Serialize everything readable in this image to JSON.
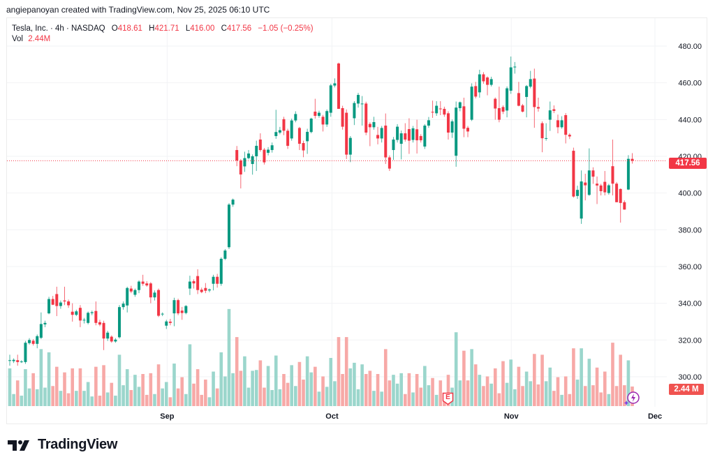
{
  "header": {
    "credit": "angiepanoyan created with TradingView.com, Nov 25, 2025 06:10 UTC"
  },
  "legend": {
    "symbol": "Tesla, Inc. · 4h · NASDAQ",
    "open_label": "O",
    "open": "418.61",
    "high_label": "H",
    "high": "421.71",
    "low_label": "L",
    "low": "416.00",
    "close_label": "C",
    "close": "417.56",
    "change": "−1.05 (−0.25%)",
    "vol_label": "Vol",
    "vol": "2.44M"
  },
  "last_price_tag": "417.56",
  "volume_tag": "2.44 M",
  "markers": {
    "earnings": "E"
  },
  "logo": {
    "text": "TradingView"
  },
  "colors": {
    "up": "#089981",
    "down": "#F23645",
    "vol_up": "#9BD6CC",
    "vol_down": "#F7A9A7",
    "grid": "#F2F3F5",
    "last_line": "#F23645",
    "event": "#9C27B0"
  },
  "chart_data": {
    "type": "candlestick",
    "title": "Tesla, Inc. · 4h · NASDAQ",
    "ylim": [
      300,
      480
    ],
    "y_ticks": [
      "300.00",
      "320.00",
      "340.00",
      "360.00",
      "380.00",
      "400.00",
      "420.00",
      "440.00",
      "460.00",
      "480.00"
    ],
    "y_tick_values": [
      300,
      320,
      340,
      360,
      380,
      400,
      420,
      440,
      460,
      480
    ],
    "x_ticks": [
      {
        "label": "Sep",
        "index": 40.2
      },
      {
        "label": "Oct",
        "index": 82.3
      },
      {
        "label": "Nov",
        "index": 128.1
      },
      {
        "label": "Dec",
        "index": 164.8
      }
    ],
    "last_price": 417.56,
    "volume_unit": "M",
    "ohlc": [
      [
        309,
        312,
        306,
        309
      ],
      [
        308.5,
        310,
        307.5,
        309.2
      ],
      [
        309,
        312,
        306,
        308
      ],
      [
        308,
        309,
        307.5,
        308.3
      ],
      [
        308,
        319.5,
        307,
        318.5
      ],
      [
        318.3,
        321,
        317.5,
        320
      ],
      [
        319.6,
        320.5,
        317,
        317.9
      ],
      [
        317.9,
        323,
        315.5,
        322.1
      ],
      [
        321.2,
        335,
        320.5,
        328.7
      ],
      [
        328.5,
        330.5,
        327,
        329.3
      ],
      [
        334.5,
        343.5,
        334,
        342.3
      ],
      [
        342.3,
        344,
        339,
        339.2
      ],
      [
        345,
        349,
        333,
        338.5
      ],
      [
        338.5,
        341.5,
        337,
        340.4
      ],
      [
        341.5,
        349,
        339,
        341
      ],
      [
        341,
        342,
        337.5,
        338.9
      ],
      [
        335.4,
        340,
        330,
        333.7
      ],
      [
        333.7,
        336.5,
        333,
        335.6
      ],
      [
        337.5,
        339,
        327,
        330.6
      ],
      [
        331,
        332,
        329,
        331
      ],
      [
        329.3,
        335.5,
        328.5,
        334.8
      ],
      [
        334.6,
        336,
        333.5,
        335.1
      ],
      [
        335.8,
        341,
        328,
        329.3
      ],
      [
        329.7,
        331,
        327.5,
        328.4
      ],
      [
        329.3,
        330.5,
        314.5,
        320.8
      ],
      [
        320.8,
        325,
        319.5,
        324
      ],
      [
        321.8,
        322.5,
        318.5,
        319.2
      ],
      [
        319.2,
        321,
        318.5,
        320.2
      ],
      [
        321.5,
        339,
        320.8,
        337.9
      ],
      [
        337.9,
        341,
        336.5,
        339.8
      ],
      [
        338.8,
        349,
        335,
        348.3
      ],
      [
        348,
        349.5,
        345.5,
        346.4
      ],
      [
        344.6,
        348,
        343.5,
        347.2
      ],
      [
        347.2,
        352.5,
        345.5,
        351.8
      ],
      [
        351.8,
        355.5,
        349.5,
        350.6
      ],
      [
        350.8,
        352,
        349,
        349.7
      ],
      [
        350.8,
        351.5,
        340,
        343.2
      ],
      [
        343.2,
        347,
        341.5,
        345.8
      ],
      [
        347.2,
        348,
        332.5,
        333.2
      ],
      [
        334,
        335,
        333,
        334.3
      ],
      [
        327.8,
        331,
        326,
        330.1
      ],
      [
        330,
        331.5,
        328,
        329.3
      ],
      [
        334.5,
        343,
        327.5,
        341.7
      ],
      [
        341.7,
        342.5,
        333.5,
        334.5
      ],
      [
        336,
        338,
        331,
        334.7
      ],
      [
        334.7,
        339,
        334,
        338.5
      ],
      [
        348,
        355,
        344.5,
        351.8
      ],
      [
        352,
        353,
        348,
        350.8
      ],
      [
        354.8,
        358.5,
        345,
        347.2
      ],
      [
        347.4,
        348.5,
        345.5,
        346.1
      ],
      [
        348.3,
        351,
        345.5,
        346.8
      ],
      [
        347,
        348,
        346,
        347.5
      ],
      [
        350.6,
        355.5,
        347,
        354.4
      ],
      [
        354.4,
        356,
        348.5,
        350.6
      ],
      [
        350.6,
        365,
        349.5,
        364.2
      ],
      [
        364.2,
        369.5,
        363.5,
        368.7
      ],
      [
        370.5,
        394.5,
        369.5,
        393.7
      ],
      [
        393.7,
        397,
        392.5,
        396.4
      ],
      [
        423.4,
        425.6,
        414.6,
        417.7
      ],
      [
        417.7,
        418.5,
        402.5,
        410.1
      ],
      [
        414.5,
        422.5,
        411.5,
        419
      ],
      [
        419,
        423.4,
        418.3,
        421.5
      ],
      [
        415.8,
        421,
        410,
        420
      ],
      [
        420,
        428.5,
        412,
        425.7
      ],
      [
        429.1,
        432.5,
        422.5,
        423.4
      ],
      [
        423.6,
        424.5,
        415.5,
        416.7
      ],
      [
        421.9,
        425,
        420.5,
        423.6
      ],
      [
        423.4,
        427.5,
        422,
        426
      ],
      [
        431,
        445.3,
        429.5,
        433.2
      ],
      [
        432.9,
        436,
        432,
        434.2
      ],
      [
        440.2,
        441.5,
        431.5,
        433.9
      ],
      [
        433.9,
        435,
        424,
        425.7
      ],
      [
        429.7,
        440.5,
        428.5,
        439.5
      ],
      [
        439.5,
        444.5,
        438.5,
        443
      ],
      [
        435.4,
        436,
        423.4,
        426.8
      ],
      [
        427.2,
        428.5,
        419.5,
        423.2
      ],
      [
        428.2,
        435,
        421.3,
        433.3
      ],
      [
        433.2,
        441,
        432.5,
        440.5
      ],
      [
        444.3,
        451.3,
        440.5,
        442
      ],
      [
        442,
        444.8,
        441,
        443.7
      ],
      [
        441.5,
        442.5,
        433.5,
        437.3
      ],
      [
        437.3,
        445.5,
        436,
        444.6
      ],
      [
        443.7,
        459.5,
        441.5,
        458.6
      ],
      [
        458.5,
        462.4,
        457.5,
        459.7
      ],
      [
        470.5,
        471,
        446,
        445.8
      ],
      [
        446.2,
        447.5,
        434.5,
        436.1
      ],
      [
        443.7,
        445.5,
        418.5,
        420.9
      ],
      [
        420.9,
        431,
        416.8,
        430
      ],
      [
        440.7,
        450,
        437,
        449
      ],
      [
        448.7,
        454.5,
        446.5,
        453.4
      ],
      [
        448.5,
        452.8,
        436.7,
        448.7
      ],
      [
        448.7,
        449.7,
        431.5,
        432.9
      ],
      [
        437.6,
        438.5,
        425.5,
        435.8
      ],
      [
        435.8,
        441.5,
        434.5,
        438.6
      ],
      [
        431.6,
        436,
        426.5,
        429.7
      ],
      [
        429.7,
        436.5,
        427.5,
        435.4
      ],
      [
        436.7,
        443.3,
        415.8,
        419.4
      ],
      [
        419.4,
        420.5,
        412,
        413.3
      ],
      [
        423.4,
        430.5,
        418,
        429.1
      ],
      [
        428.9,
        437.5,
        427.5,
        436.1
      ],
      [
        426.8,
        434,
        418.3,
        432.5
      ],
      [
        432.5,
        438,
        428,
        429.1
      ],
      [
        434.8,
        440.7,
        421.3,
        428.5
      ],
      [
        428.9,
        436.5,
        427.5,
        435.2
      ],
      [
        434.7,
        439.9,
        421.5,
        428.7
      ],
      [
        431,
        432,
        427.5,
        428.7
      ],
      [
        425.3,
        437.5,
        424,
        436.7
      ],
      [
        436.7,
        441.4,
        435.5,
        439.6
      ],
      [
        444.2,
        450.3,
        440.9,
        443.8
      ],
      [
        443.4,
        450,
        442,
        447.5
      ],
      [
        446,
        450,
        442.4,
        445.8
      ],
      [
        445.8,
        447,
        441.5,
        442.7
      ],
      [
        443.4,
        444.5,
        429.1,
        432.9
      ],
      [
        432.9,
        440,
        430,
        439
      ],
      [
        420.3,
        449.8,
        414.3,
        446.5
      ],
      [
        446.2,
        449.8,
        444.5,
        449.4
      ],
      [
        447.2,
        451.9,
        430.4,
        435
      ],
      [
        435.5,
        436.5,
        430.4,
        433.5
      ],
      [
        439.9,
        459.7,
        439.2,
        457.9
      ],
      [
        458.2,
        460.5,
        451.5,
        452.5
      ],
      [
        454.8,
        467.1,
        451.9,
        464.6
      ],
      [
        464.6,
        465.8,
        459.5,
        460.8
      ],
      [
        462.9,
        463.5,
        453.2,
        458.9
      ],
      [
        458.9,
        463.3,
        458,
        462
      ],
      [
        451.3,
        452,
        439.9,
        446
      ],
      [
        446.2,
        457.9,
        438.5,
        439.9
      ],
      [
        446.8,
        447.7,
        443,
        444.3
      ],
      [
        444.9,
        458,
        441.2,
        457
      ],
      [
        455.7,
        474.3,
        454,
        468.4
      ],
      [
        468.4,
        471.3,
        465,
        468.8
      ],
      [
        454.4,
        460.5,
        447.2,
        447.5
      ],
      [
        447.7,
        448.5,
        443.9,
        444.3
      ],
      [
        452.3,
        458.8,
        441.2,
        458.2
      ],
      [
        457.9,
        466.5,
        457,
        462
      ],
      [
        462.3,
        467.7,
        435.5,
        446.8
      ],
      [
        446.8,
        451.9,
        444.3,
        446
      ],
      [
        438,
        439,
        422.2,
        429.8
      ],
      [
        429.7,
        438,
        428.5,
        429.9
      ],
      [
        439.9,
        449.8,
        433.8,
        445
      ],
      [
        445.6,
        447.7,
        443.5,
        444.7
      ],
      [
        439.6,
        442.7,
        432.5,
        435.8
      ],
      [
        435.8,
        441.8,
        435,
        439.6
      ],
      [
        442.4,
        443.5,
        427,
        431.7
      ],
      [
        431.7,
        432.5,
        429.4,
        430.8
      ],
      [
        423,
        424.7,
        397.5,
        398.1
      ],
      [
        398.4,
        404,
        396.8,
        401.7
      ],
      [
        386.1,
        412.3,
        383.2,
        406.3
      ],
      [
        405.7,
        410.5,
        396,
        404.2
      ],
      [
        399,
        424.3,
        398.5,
        412.3
      ],
      [
        412.3,
        414,
        405,
        408.9
      ],
      [
        405.1,
        409,
        394,
        404.1
      ],
      [
        404.1,
        405,
        398.7,
        401
      ],
      [
        406.1,
        412,
        398.7,
        400.4
      ],
      [
        400,
        405,
        399.1,
        404.2
      ],
      [
        414.6,
        429.1,
        398.7,
        405.1
      ],
      [
        405.1,
        406,
        395,
        395
      ],
      [
        402.2,
        402.5,
        383.9,
        394.6
      ],
      [
        395,
        396,
        390.9,
        391
      ],
      [
        401.9,
        420.6,
        401.6,
        418.6
      ],
      [
        418.61,
        421.71,
        416,
        417.56
      ]
    ],
    "volume": [
      4.7,
      1.5,
      3.2,
      1.3,
      4.6,
      2.2,
      4.1,
      2.1,
      7.1,
      2.3,
      6.7,
      2.5,
      4.9,
      1.9,
      4.2,
      1.6,
      4.7,
      1.9,
      4.7,
      1.9,
      3.0,
      1.2,
      4.9,
      1.3,
      5.1,
      1.7,
      2.9,
      1.3,
      6.4,
      2.6,
      4.6,
      2.0,
      3.9,
      2.4,
      4.0,
      1.4,
      4.1,
      1.5,
      5.2,
      2.2,
      3.0,
      1.1,
      5.3,
      2.2,
      3.6,
      1.5,
      7.7,
      2.8,
      4.6,
      1.4,
      3.3,
      1.1,
      4.3,
      2.2,
      6.7,
      3.7,
      12.1,
      4.1,
      8.6,
      4.4,
      6.2,
      2.3,
      4.4,
      4.5,
      5.7,
      2.3,
      5.0,
      2.0,
      6.3,
      2.1,
      4.0,
      2.9,
      5.1,
      2.5,
      5.5,
      3.3,
      6.2,
      4.2,
      4.9,
      1.8,
      3.7,
      2.4,
      6.0,
      3.1,
      8.6,
      4.0,
      8.6,
      4.7,
      5.4,
      2.1,
      5.2,
      4.0,
      4.4,
      1.9,
      4.0,
      1.8,
      7.1,
      3.2,
      3.9,
      2.8,
      4.1,
      1.5,
      4.1,
      1.7,
      4.0,
      2.3,
      5.0,
      2.6,
      3.5,
      1.4,
      3.2,
      1.5,
      3.9,
      2.3,
      9.2,
      3.2,
      6.9,
      3.2,
      7.1,
      5.2,
      3.9,
      2.5,
      3.7,
      2.8,
      4.7,
      1.6,
      5.6,
      2.9,
      5.8,
      2.1,
      4.9,
      2.5,
      4.3,
      3.1,
      6.5,
      2.7,
      6.4,
      3.1,
      4.8,
      1.9,
      3.6,
      1.4,
      3.7,
      1.5,
      7.2,
      3.3,
      7.2,
      2.5,
      5.9,
      2.6,
      4.8,
      1.7,
      4.3,
      1.5,
      7.9,
      2.5,
      6.4,
      2.6,
      5.7,
      2.44
    ]
  }
}
